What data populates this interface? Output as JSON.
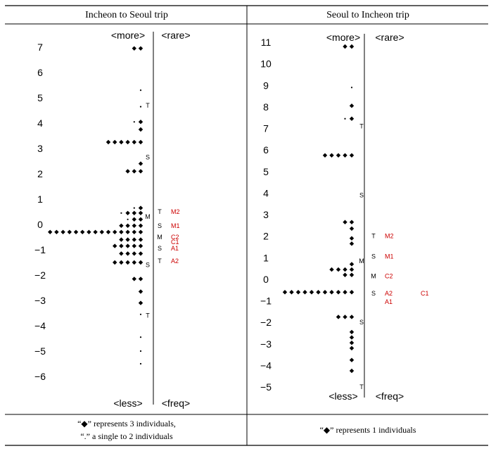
{
  "colors": {
    "item": "#cc0000",
    "ink": "#000000",
    "rule": "#000000"
  },
  "chart_data": [
    {
      "type": "scatter",
      "title": "Incheon to Seoul trip",
      "ylim": [
        -6,
        7
      ],
      "yticks": [
        "7",
        "6",
        "5",
        "4",
        "3",
        "2",
        "1",
        "0",
        "−1",
        "−2",
        "−3",
        "−4",
        "−5",
        "−6"
      ],
      "top_left": "<more>",
      "top_right": "<rare>",
      "bottom_left": "<less>",
      "bottom_right": "<freq>",
      "person_rows": [
        {
          "y": 6.95,
          "n": 2,
          "dots": 0
        },
        {
          "y": 5.3,
          "n": 0,
          "dots": 1
        },
        {
          "y": 4.65,
          "n": 0,
          "dots": 1
        },
        {
          "y": 4.05,
          "n": 1,
          "dots": 1
        },
        {
          "y": 3.75,
          "n": 1,
          "dots": 0
        },
        {
          "y": 3.25,
          "n": 6,
          "dots": 0
        },
        {
          "y": 2.4,
          "n": 1,
          "dots": 0
        },
        {
          "y": 2.1,
          "n": 3,
          "dots": 0
        },
        {
          "y": 0.65,
          "n": 1,
          "dots": 1
        },
        {
          "y": 0.45,
          "n": 3,
          "dots": 1
        },
        {
          "y": 0.2,
          "n": 2,
          "dots": 1
        },
        {
          "y": -0.05,
          "n": 4,
          "dots": 0
        },
        {
          "y": -0.3,
          "n": 15,
          "dots": 0
        },
        {
          "y": -0.6,
          "n": 4,
          "dots": 0
        },
        {
          "y": -0.85,
          "n": 5,
          "dots": 0
        },
        {
          "y": -1.15,
          "n": 4,
          "dots": 0
        },
        {
          "y": -1.5,
          "n": 5,
          "dots": 0
        },
        {
          "y": -2.15,
          "n": 2,
          "dots": 0
        },
        {
          "y": -2.65,
          "n": 1,
          "dots": 0
        },
        {
          "y": -3.1,
          "n": 1,
          "dots": 0
        },
        {
          "y": -3.55,
          "n": 0,
          "dots": 1
        },
        {
          "y": -4.45,
          "n": 0,
          "dots": 1
        },
        {
          "y": -5.0,
          "n": 0,
          "dots": 1
        },
        {
          "y": -5.5,
          "n": 0,
          "dots": 1
        }
      ],
      "markers": [
        {
          "label": "T",
          "y": 4.7
        },
        {
          "label": "S",
          "y": 2.65
        },
        {
          "label": "M",
          "y": 0.3
        },
        {
          "label": "S",
          "y": -1.6
        },
        {
          "label": "T",
          "y": -3.6
        }
      ],
      "items": [
        {
          "label": "T",
          "y": 0.5,
          "code": "M2"
        },
        {
          "label": "S",
          "y": -0.05,
          "code": "M1"
        },
        {
          "label": "M",
          "y": -0.5,
          "code": "C2"
        },
        {
          "label": "",
          "y": -0.7,
          "code": "C1"
        },
        {
          "label": "S",
          "y": -0.95,
          "code": "A1"
        },
        {
          "label": "T",
          "y": -1.45,
          "code": "A2"
        }
      ],
      "footnote": [
        "“◆” represents 3 individuals,",
        "“.” a single to 2 individuals"
      ]
    },
    {
      "type": "scatter",
      "title": "Seoul to Incheon trip",
      "ylim": [
        -5,
        11
      ],
      "yticks": [
        "11",
        "10",
        "9",
        "8",
        "7",
        "6",
        "5",
        "4",
        "3",
        "2",
        "1",
        "0",
        "−1",
        "−2",
        "−3",
        "−4",
        "−5"
      ],
      "top_left": "<more>",
      "top_right": "<rare>",
      "bottom_left": "<less>",
      "bottom_right": "<freq>",
      "person_rows": [
        {
          "y": 10.8,
          "n": 2,
          "dots": 0
        },
        {
          "y": 8.9,
          "n": 0,
          "dots": 1
        },
        {
          "y": 8.05,
          "n": 1,
          "dots": 0
        },
        {
          "y": 7.45,
          "n": 1,
          "dots": 1
        },
        {
          "y": 5.75,
          "n": 5,
          "dots": 0
        },
        {
          "y": 2.65,
          "n": 2,
          "dots": 0
        },
        {
          "y": 2.35,
          "n": 1,
          "dots": 0
        },
        {
          "y": 1.9,
          "n": 1,
          "dots": 0
        },
        {
          "y": 1.65,
          "n": 1,
          "dots": 0
        },
        {
          "y": 0.7,
          "n": 1,
          "dots": 0
        },
        {
          "y": 0.45,
          "n": 4,
          "dots": 0
        },
        {
          "y": 0.2,
          "n": 2,
          "dots": 0
        },
        {
          "y": -0.6,
          "n": 11,
          "dots": 0
        },
        {
          "y": -1.75,
          "n": 3,
          "dots": 0
        },
        {
          "y": -2.45,
          "n": 1,
          "dots": 0
        },
        {
          "y": -2.7,
          "n": 1,
          "dots": 0
        },
        {
          "y": -2.95,
          "n": 1,
          "dots": 0
        },
        {
          "y": -3.2,
          "n": 1,
          "dots": 0
        },
        {
          "y": -3.75,
          "n": 1,
          "dots": 0
        },
        {
          "y": -4.25,
          "n": 1,
          "dots": 0
        }
      ],
      "markers": [
        {
          "label": "T",
          "y": 7.1
        },
        {
          "label": "S",
          "y": 3.9
        },
        {
          "label": "M",
          "y": 0.85
        },
        {
          "label": "S",
          "y": -2.0
        },
        {
          "label": "T",
          "y": -5.0
        }
      ],
      "items": [
        {
          "label": "T",
          "y": 2.0,
          "code": "M2"
        },
        {
          "label": "S",
          "y": 1.05,
          "code": "M1"
        },
        {
          "label": "M",
          "y": 0.15,
          "code": "C2"
        },
        {
          "label": "S",
          "y": -0.65,
          "code": "A2"
        },
        {
          "label": "",
          "y": -1.05,
          "code": "A1"
        },
        {
          "label": "",
          "y": -0.65,
          "code": "C1"
        }
      ],
      "footnote": [
        "“◆” represents 1 individuals"
      ]
    }
  ]
}
